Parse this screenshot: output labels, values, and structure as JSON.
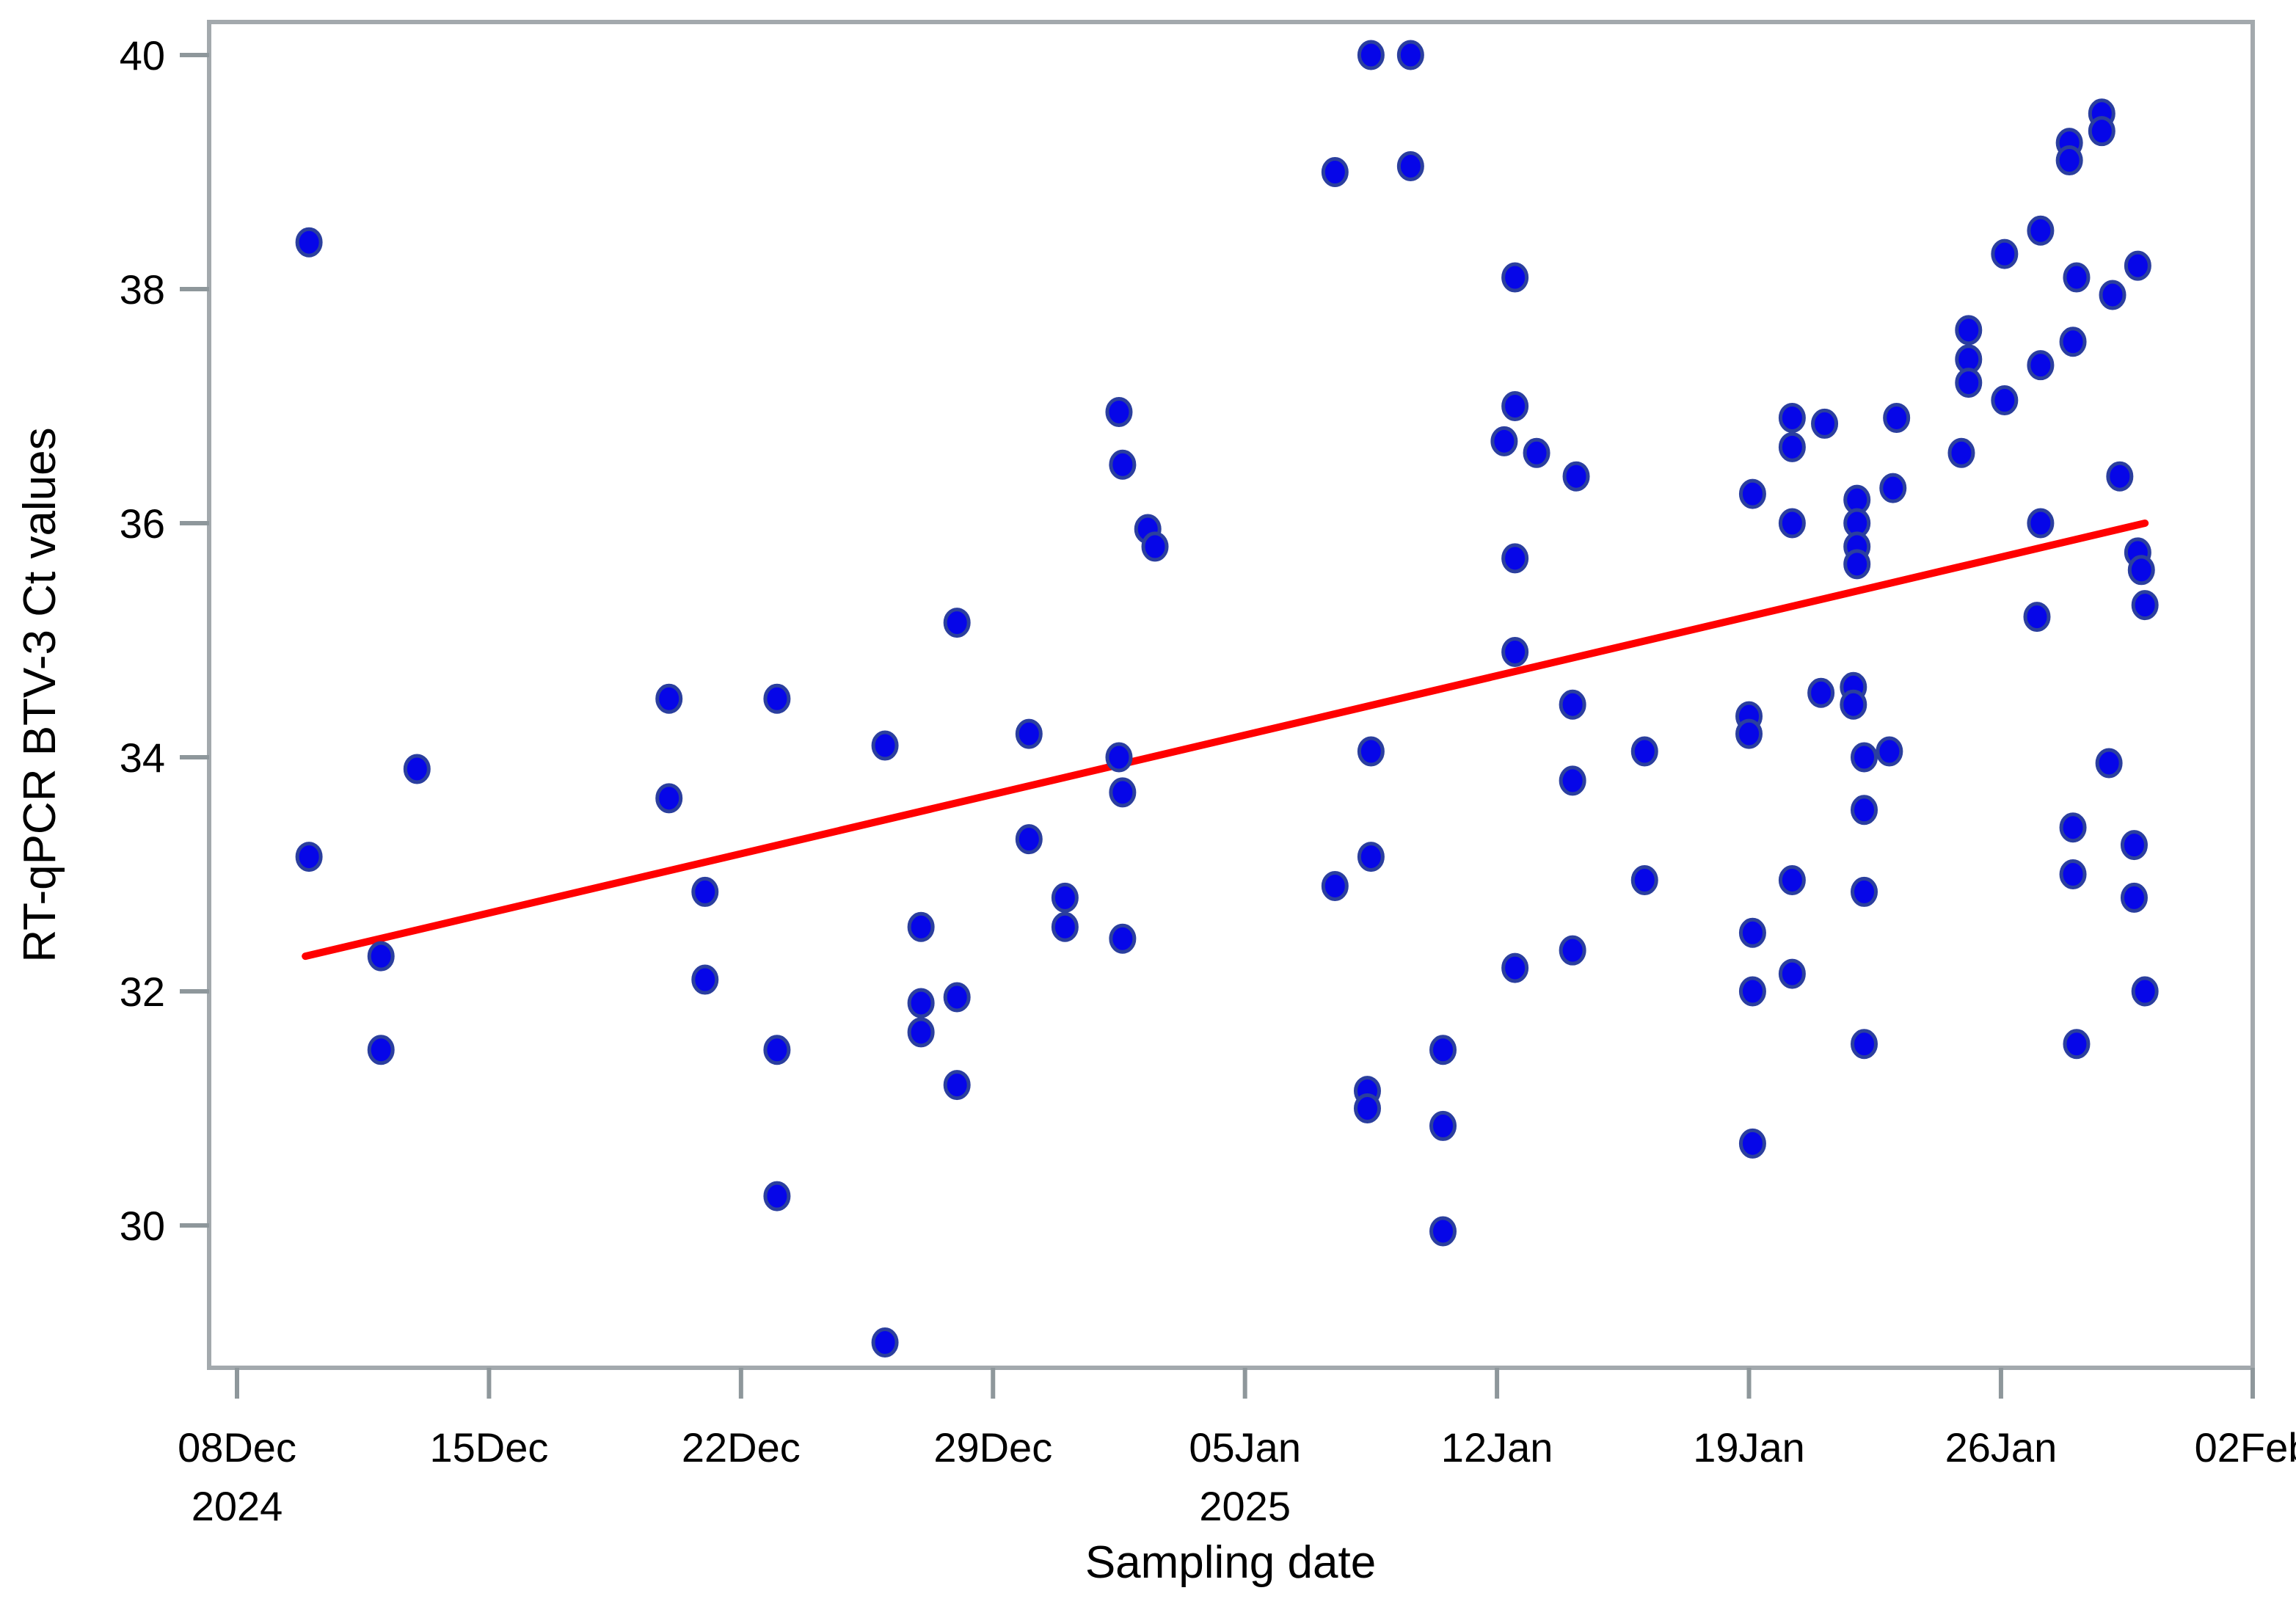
{
  "chart_data": {
    "type": "scatter",
    "title": "",
    "xlabel": "Sampling date",
    "ylabel": "RT-qPCR BTV-3 Ct values",
    "x_unit": "days since 08Dec2024",
    "x_axis": {
      "ticks": [
        {
          "d": 0,
          "label": "08Dec",
          "sublabel": "2024"
        },
        {
          "d": 7,
          "label": "15Dec",
          "sublabel": ""
        },
        {
          "d": 14,
          "label": "22Dec",
          "sublabel": ""
        },
        {
          "d": 21,
          "label": "29Dec",
          "sublabel": ""
        },
        {
          "d": 28,
          "label": "05Jan",
          "sublabel": "2025"
        },
        {
          "d": 35,
          "label": "12Jan",
          "sublabel": ""
        },
        {
          "d": 42,
          "label": "19Jan",
          "sublabel": ""
        },
        {
          "d": 49,
          "label": "26Jan",
          "sublabel": ""
        },
        {
          "d": 56,
          "label": "02Feb",
          "sublabel": ""
        }
      ],
      "range_days": [
        -0.8,
        56
      ]
    },
    "y_axis": {
      "ticks": [
        30,
        32,
        34,
        36,
        38,
        40
      ],
      "range": [
        28.78,
        40.28
      ]
    },
    "legend": "none",
    "grid": false,
    "point_color": "#0606e8",
    "point_edge_color": "#2b3f9e",
    "trend_color": "#ff0000",
    "frame_color": "#a3a9ad",
    "tick_color": "#8e979b",
    "series": [
      {
        "name": "BTV-3 Ct values",
        "points": [
          [
            2,
            38.4
          ],
          [
            2,
            33.15
          ],
          [
            4,
            32.3
          ],
          [
            4,
            31.5
          ],
          [
            5,
            33.9
          ],
          [
            12,
            34.5
          ],
          [
            12,
            33.65
          ],
          [
            13,
            32.85
          ],
          [
            13,
            32.1
          ],
          [
            15,
            34.5
          ],
          [
            15,
            31.5
          ],
          [
            15,
            30.25
          ],
          [
            18,
            34.1
          ],
          [
            18,
            29.0
          ],
          [
            19,
            32.55
          ],
          [
            19,
            31.9
          ],
          [
            19,
            31.65
          ],
          [
            20,
            35.15
          ],
          [
            20,
            31.95
          ],
          [
            20,
            31.2
          ],
          [
            22,
            34.2
          ],
          [
            22,
            33.3
          ],
          [
            23,
            32.8
          ],
          [
            23,
            32.55
          ],
          [
            24.5,
            36.95
          ],
          [
            24.6,
            36.5
          ],
          [
            24.6,
            32.45
          ],
          [
            25.3,
            35.95
          ],
          [
            25.5,
            35.8
          ],
          [
            24.5,
            34.0
          ],
          [
            24.6,
            33.7
          ],
          [
            30.5,
            39.0
          ],
          [
            30.5,
            32.9
          ],
          [
            31.5,
            40.0
          ],
          [
            31.5,
            34.05
          ],
          [
            31.5,
            33.15
          ],
          [
            31.4,
            31.15
          ],
          [
            31.4,
            31.0
          ],
          [
            32.6,
            40.0
          ],
          [
            32.6,
            39.05
          ],
          [
            33.5,
            31.5
          ],
          [
            33.5,
            30.85
          ],
          [
            33.5,
            29.95
          ],
          [
            35.5,
            38.1
          ],
          [
            35.5,
            37.0
          ],
          [
            35.2,
            36.7
          ],
          [
            35.5,
            35.7
          ],
          [
            35.5,
            34.9
          ],
          [
            35.5,
            32.2
          ],
          [
            36.1,
            36.6
          ],
          [
            37.2,
            36.4
          ],
          [
            37.1,
            34.45
          ],
          [
            37.1,
            33.8
          ],
          [
            37.1,
            32.35
          ],
          [
            39.1,
            34.05
          ],
          [
            39.1,
            32.95
          ],
          [
            42.1,
            36.25
          ],
          [
            42.0,
            34.35
          ],
          [
            42.0,
            34.2
          ],
          [
            42.1,
            32.5
          ],
          [
            42.1,
            32.0
          ],
          [
            42.1,
            30.7
          ],
          [
            43.2,
            36.9
          ],
          [
            43.2,
            36.65
          ],
          [
            43.2,
            36.0
          ],
          [
            43.2,
            32.95
          ],
          [
            43.2,
            32.15
          ],
          [
            44.1,
            36.85
          ],
          [
            44.0,
            34.55
          ],
          [
            45.0,
            36.2
          ],
          [
            45.0,
            36.0
          ],
          [
            45.0,
            35.8
          ],
          [
            45.0,
            35.65
          ],
          [
            44.9,
            34.6
          ],
          [
            44.9,
            34.45
          ],
          [
            45.2,
            34.0
          ],
          [
            45.2,
            33.55
          ],
          [
            45.2,
            32.85
          ],
          [
            45.2,
            31.55
          ],
          [
            46.1,
            36.9
          ],
          [
            46.0,
            36.3
          ],
          [
            45.9,
            34.05
          ],
          [
            48.1,
            37.65
          ],
          [
            48.1,
            37.4
          ],
          [
            48.1,
            37.2
          ],
          [
            47.9,
            36.6
          ],
          [
            49.1,
            38.3
          ],
          [
            49.1,
            37.05
          ],
          [
            50.1,
            38.5
          ],
          [
            50.1,
            37.35
          ],
          [
            50.1,
            36.0
          ],
          [
            50.0,
            35.2
          ],
          [
            50.9,
            39.25
          ],
          [
            50.9,
            39.1
          ],
          [
            51.1,
            38.1
          ],
          [
            51.0,
            37.55
          ],
          [
            51.0,
            33.4
          ],
          [
            51.0,
            33.0
          ],
          [
            51.1,
            31.55
          ],
          [
            51.8,
            39.5
          ],
          [
            51.8,
            39.35
          ],
          [
            52.1,
            37.95
          ],
          [
            52.3,
            36.4
          ],
          [
            52.0,
            33.95
          ],
          [
            52.8,
            38.2
          ],
          [
            52.8,
            35.75
          ],
          [
            52.9,
            35.6
          ],
          [
            53.0,
            35.3
          ],
          [
            52.7,
            33.25
          ],
          [
            52.7,
            32.8
          ],
          [
            53.0,
            32.0
          ]
        ]
      }
    ],
    "trend_line": {
      "start": {
        "d": 1.9,
        "ct": 32.3
      },
      "end": {
        "d": 53.0,
        "ct": 36.0
      }
    }
  }
}
